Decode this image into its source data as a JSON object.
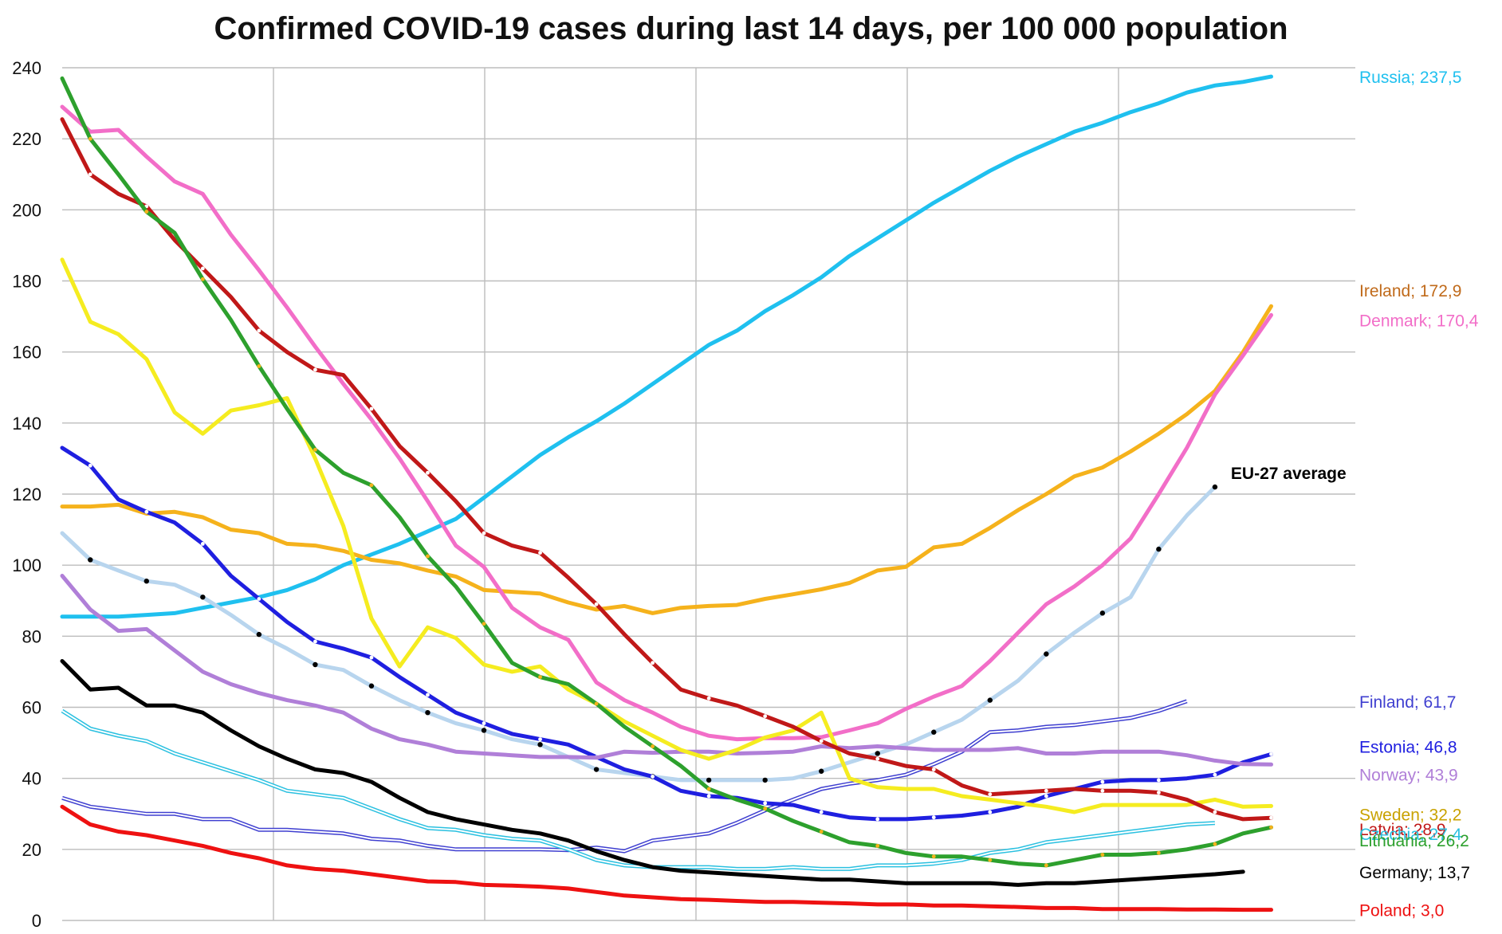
{
  "chart_data": {
    "type": "line",
    "title": "Confirmed COVID-19 cases during last 14 days, per 100 000 population",
    "xlabel": "",
    "ylabel": "",
    "ylim": [
      0,
      240
    ],
    "yticks": [
      "0",
      "20",
      "40",
      "60",
      "80",
      "100",
      "120",
      "140",
      "160",
      "180",
      "200",
      "220",
      "240"
    ],
    "grid": true,
    "legend": "end-of-line labels",
    "x_count": 46,
    "series": [
      {
        "name": "Russia; 237,5",
        "color": "#1fc0ef",
        "width": 5,
        "values": [
          85.5,
          85.5,
          85.5,
          86,
          86.5,
          88,
          89.5,
          91,
          93,
          96,
          100,
          103,
          106,
          109.5,
          113,
          119,
          125,
          131,
          136,
          140.5,
          145.5,
          151,
          156.5,
          162,
          166,
          171.5,
          176,
          181,
          187,
          192,
          197,
          202,
          206.5,
          211,
          215,
          218.5,
          222,
          224.5,
          227.5,
          230,
          233,
          235,
          236,
          237.5
        ]
      },
      {
        "name": "Ireland; 172,9",
        "color": "#f5b21c",
        "width": 5,
        "values": [
          116.5,
          116.5,
          117,
          114.5,
          115,
          113.5,
          110,
          109,
          106,
          105.5,
          104,
          101.5,
          100.5,
          98.5,
          96.8,
          93,
          92.5,
          92,
          89.5,
          87.5,
          88.5,
          86.5,
          88,
          88.5,
          88.8,
          90.5,
          91.8,
          93.2,
          95,
          98.5,
          99.5,
          105,
          106,
          110.5,
          115.5,
          120,
          125,
          127.5,
          132,
          137,
          142.5,
          149,
          160,
          172.9
        ]
      },
      {
        "name": "Denmark; 170,4",
        "color": "#f26ec8",
        "width": 5,
        "values": [
          229,
          222,
          222.5,
          215,
          208,
          204.5,
          193,
          183,
          172.5,
          161.5,
          151,
          141,
          130,
          118,
          105.5,
          99.5,
          88,
          82.5,
          79,
          67,
          62,
          58.5,
          54.5,
          52,
          51,
          51.3,
          51.3,
          51.6,
          53.5,
          55.5,
          59.5,
          63,
          66,
          73,
          81,
          89,
          94,
          100,
          107.5,
          120,
          133,
          148,
          159,
          170.4
        ]
      },
      {
        "name": "EU-27 average",
        "color": "#b8d5ee",
        "width": 5,
        "marker": "#000000",
        "values": [
          109,
          101.5,
          98.5,
          95.5,
          94.5,
          91,
          86,
          80.5,
          76.5,
          72,
          70.5,
          66,
          62,
          58.5,
          55.5,
          53.5,
          51,
          49.5,
          46,
          42.5,
          41.5,
          40.5,
          39.5,
          39.5,
          39.5,
          39.5,
          40,
          42,
          44.5,
          47,
          49.5,
          53,
          56.5,
          62,
          67.5,
          75,
          81,
          86.5,
          91,
          104.5,
          114,
          122
        ]
      },
      {
        "name": "Finland; 61,7",
        "color": "#3f3fd0",
        "width": 2,
        "double": true,
        "values": [
          34.5,
          32,
          31,
          30,
          30,
          28.5,
          28.5,
          25.5,
          25.5,
          25,
          24.5,
          23,
          22.5,
          21,
          20,
          20,
          20,
          20,
          19.8,
          20.5,
          19.5,
          22.5,
          23.5,
          24.5,
          27.5,
          31,
          34,
          37,
          38.5,
          39.5,
          41,
          44,
          47.5,
          53,
          53.5,
          54.5,
          55,
          56,
          57,
          59,
          61.7
        ]
      },
      {
        "name": "Estonia; 46,8",
        "color": "#1f1fe0",
        "width": 5,
        "marker": "#ffffff",
        "values": [
          133,
          128,
          118.5,
          115,
          112,
          106,
          97,
          90.5,
          84,
          78.5,
          76.5,
          74,
          68.5,
          63.5,
          58.5,
          55.5,
          52.5,
          51,
          49.5,
          46,
          42.5,
          40.5,
          36.5,
          35,
          34.5,
          33,
          32.5,
          30.5,
          29,
          28.5,
          28.5,
          29,
          29.5,
          30.5,
          32,
          35,
          37,
          39,
          39.5,
          39.5,
          40,
          41,
          44.5,
          46.8
        ]
      },
      {
        "name": "Norway; 43,9",
        "color": "#b07fd8",
        "width": 5,
        "values": [
          97,
          87.5,
          81.5,
          82,
          76,
          70,
          66.5,
          64,
          62,
          60.5,
          58.5,
          54,
          51,
          49.5,
          47.5,
          47,
          46.5,
          46,
          46,
          45.8,
          47.5,
          47.2,
          47.5,
          47.5,
          47,
          47.2,
          47.5,
          49,
          48.5,
          49,
          48.5,
          48,
          48,
          48,
          48.5,
          47,
          47,
          47.5,
          47.5,
          47.5,
          46.5,
          45,
          44,
          43.9
        ]
      },
      {
        "name": "Sweden; 32,2",
        "color": "#f5ec20",
        "width": 5,
        "values": [
          186,
          168.5,
          165,
          158,
          143,
          137,
          143.5,
          145,
          147,
          130,
          111,
          85,
          71.5,
          82.5,
          79.5,
          72,
          70,
          71.5,
          65,
          61,
          56,
          52,
          48,
          45.5,
          48,
          51.5,
          53.5,
          58.5,
          40,
          37.5,
          37,
          37,
          35,
          34,
          33,
          32,
          30.5,
          32.5,
          32.5,
          32.5,
          32.5,
          34,
          32,
          32.2
        ]
      },
      {
        "name": "Latvia; 28,9",
        "color": "#c01818",
        "width": 5,
        "marker": "#ffffff",
        "values": [
          225.5,
          210,
          204.5,
          201,
          191.5,
          183.5,
          175.5,
          166,
          160,
          155,
          153.5,
          144,
          133.5,
          126,
          118,
          109,
          105.5,
          103.5,
          96.5,
          89,
          80.5,
          72.5,
          65,
          62.5,
          60.5,
          57.5,
          54.5,
          50.5,
          47,
          45.5,
          43.5,
          42.5,
          38,
          35.5,
          36,
          36.5,
          37,
          36.5,
          36.5,
          36,
          34,
          30.5,
          28.5,
          28.9
        ]
      },
      {
        "name": "Czechia; 27,4",
        "color": "#2ac0e0",
        "width": 2,
        "double": true,
        "values": [
          59,
          54,
          52,
          50.5,
          47,
          44.5,
          42,
          39.5,
          36.5,
          35.5,
          34.5,
          31.5,
          28.5,
          26,
          25.5,
          24,
          23,
          22.5,
          20,
          17,
          15.5,
          15,
          15,
          15,
          14.5,
          14.5,
          15,
          14.5,
          14.5,
          15.5,
          15.5,
          16,
          17,
          19,
          20,
          22,
          23,
          24,
          25,
          26,
          27,
          27.4
        ]
      },
      {
        "name": "Lithuania; 26,2",
        "color": "#2da02d",
        "width": 5,
        "marker": "#f5b21c",
        "values": [
          237,
          220,
          210,
          199.5,
          193.5,
          180.5,
          169,
          156,
          144,
          132.5,
          126,
          122.5,
          113.5,
          102.5,
          94,
          83.5,
          72.5,
          68.5,
          66.5,
          61,
          54.5,
          49,
          43.5,
          37,
          34,
          31.5,
          28,
          25,
          22,
          21,
          19,
          18,
          18,
          17,
          16,
          15.5,
          17,
          18.5,
          18.5,
          19,
          20,
          21.5,
          24.5,
          26.2
        ]
      },
      {
        "name": "Germany; 13,7",
        "color": "#000000",
        "width": 5,
        "values": [
          73,
          65,
          65.5,
          60.5,
          60.5,
          58.5,
          53.5,
          49,
          45.5,
          42.5,
          41.5,
          39,
          34.5,
          30.5,
          28.5,
          27,
          25.5,
          24.5,
          22.5,
          19.5,
          17,
          15,
          14,
          13.5,
          13,
          12.5,
          12,
          11.5,
          11.5,
          11,
          10.5,
          10.5,
          10.5,
          10.5,
          10,
          10.5,
          10.5,
          11,
          11.5,
          12,
          12.5,
          13,
          13.7
        ]
      },
      {
        "name": "Poland; 3,0",
        "color": "#ee1111",
        "width": 5,
        "values": [
          32,
          27,
          25,
          24,
          22.5,
          21,
          19,
          17.5,
          15.5,
          14.5,
          14,
          13,
          12,
          11,
          10.8,
          10,
          9.8,
          9.5,
          9,
          8,
          7,
          6.5,
          6,
          5.8,
          5.5,
          5.2,
          5.2,
          5,
          4.8,
          4.5,
          4.5,
          4.2,
          4.2,
          4,
          3.8,
          3.5,
          3.5,
          3.2,
          3.2,
          3.2,
          3.1,
          3.1,
          3,
          3
        ]
      }
    ]
  }
}
